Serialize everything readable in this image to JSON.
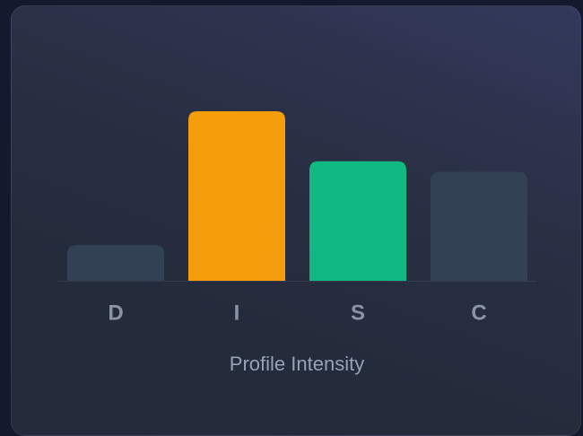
{
  "chart_data": {
    "type": "bar",
    "title": "Profile Intensity",
    "categories": [
      "D",
      "I",
      "S",
      "C"
    ],
    "values": [
      20,
      95,
      67,
      61
    ],
    "colors": [
      "#334155",
      "#f59e0b",
      "#10b981",
      "#334155"
    ]
  }
}
